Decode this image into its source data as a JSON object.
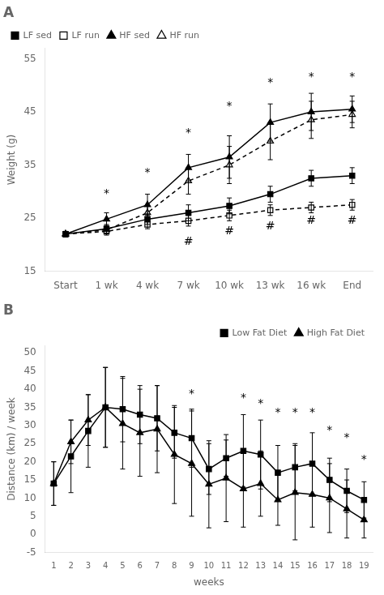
{
  "chart_data": [
    {
      "type": "line",
      "title": "A",
      "categories": [
        "Start",
        "1 wk",
        "4 wk",
        "7 wk",
        "10 wk",
        "13 wk",
        "16 wk",
        "End"
      ],
      "series": [
        {
          "name": "LF sed",
          "color": "#000000",
          "marker": "square",
          "line_style": "solid",
          "values": [
            22.0,
            23.0,
            24.8,
            26.0,
            27.3,
            29.5,
            32.5,
            33.0
          ],
          "errors": [
            0.5,
            0.8,
            1.0,
            1.5,
            1.5,
            1.5,
            1.5,
            1.5
          ]
        },
        {
          "name": "LF run",
          "color": "#000000",
          "marker": "open-square",
          "line_style": "dashed",
          "values": [
            22.0,
            22.5,
            23.8,
            24.5,
            25.5,
            26.5,
            27.0,
            27.5
          ],
          "errors": [
            0.5,
            0.7,
            0.8,
            1.0,
            1.0,
            1.0,
            1.0,
            1.0
          ]
        },
        {
          "name": "HF sed",
          "color": "#000000",
          "marker": "triangle",
          "line_style": "solid",
          "values": [
            22.0,
            24.8,
            27.5,
            34.5,
            36.5,
            43.0,
            45.0,
            45.5
          ],
          "errors": [
            0.5,
            1.2,
            2.0,
            2.5,
            4.0,
            3.5,
            3.5,
            2.5
          ]
        },
        {
          "name": "HF run",
          "color": "#000000",
          "marker": "open-triangle",
          "line_style": "dashed",
          "values": [
            22.0,
            22.8,
            26.0,
            32.0,
            35.0,
            39.5,
            43.5,
            44.5
          ],
          "errors": [
            0.5,
            0.7,
            1.5,
            2.5,
            3.5,
            3.5,
            3.5,
            2.5
          ]
        }
      ],
      "ylabel": "Weight (g)",
      "ylim": [
        15,
        57
      ],
      "yticks": [
        15,
        25,
        35,
        45,
        55
      ],
      "grid": false,
      "legend": "upper left",
      "annotations": [
        {
          "x": "1 wk",
          "y": 29.5,
          "text": "*"
        },
        {
          "x": "4 wk",
          "y": 33.5,
          "text": "*"
        },
        {
          "x": "7 wk",
          "y": 41.0,
          "text": "*"
        },
        {
          "x": "10 wk",
          "y": 46.0,
          "text": "*"
        },
        {
          "x": "13 wk",
          "y": 50.5,
          "text": "*"
        },
        {
          "x": "16 wk",
          "y": 51.5,
          "text": "*"
        },
        {
          "x": "End",
          "y": 51.5,
          "text": "*"
        },
        {
          "x": "7 wk",
          "y": 20.5,
          "text": "#"
        },
        {
          "x": "10 wk",
          "y": 22.5,
          "text": "#"
        },
        {
          "x": "13 wk",
          "y": 23.5,
          "text": "#"
        },
        {
          "x": "16 wk",
          "y": 24.5,
          "text": "#"
        },
        {
          "x": "End",
          "y": 24.5,
          "text": "#"
        }
      ]
    },
    {
      "type": "line",
      "title": "B",
      "x": [
        1,
        2,
        3,
        4,
        5,
        6,
        7,
        8,
        9,
        10,
        11,
        12,
        13,
        14,
        15,
        16,
        17,
        18,
        19
      ],
      "series": [
        {
          "name": "Low Fat Diet",
          "color": "#000000",
          "marker": "square",
          "line_style": "solid",
          "values": [
            14.0,
            21.5,
            28.5,
            35.0,
            34.5,
            33.0,
            32.0,
            28.0,
            26.5,
            18.0,
            21.0,
            23.0,
            22.0,
            17.0,
            18.5,
            19.5,
            15.0,
            12.0,
            9.5
          ],
          "errors": [
            6.0,
            10.0,
            10.0,
            11.0,
            9.0,
            8.0,
            9.0,
            7.0,
            8.0,
            7.0,
            5.0,
            10.0,
            9.5,
            7.5,
            6.5,
            8.5,
            6.0,
            6.0,
            5.0
          ]
        },
        {
          "name": "High Fat Diet",
          "color": "#000000",
          "marker": "triangle",
          "line_style": "solid",
          "values": [
            14.0,
            25.5,
            31.5,
            35.0,
            30.5,
            28.0,
            29.0,
            22.0,
            19.5,
            13.8,
            15.5,
            12.5,
            14.0,
            9.5,
            11.5,
            11.0,
            10.0,
            7.0,
            4.0
          ],
          "errors": [
            6.0,
            6.0,
            7.0,
            11.0,
            12.5,
            12.0,
            12.0,
            13.5,
            14.5,
            12.0,
            12.0,
            10.5,
            9.0,
            7.0,
            13.0,
            9.0,
            9.5,
            8.0,
            5.0
          ]
        }
      ],
      "xlabel": "weeks",
      "ylabel": "Distance (km) / week",
      "xlim": [
        0.5,
        19.5
      ],
      "xticks": [
        1,
        2,
        3,
        4,
        5,
        6,
        7,
        8,
        9,
        10,
        11,
        12,
        13,
        14,
        15,
        16,
        17,
        18,
        19
      ],
      "ylim": [
        -5,
        52
      ],
      "yticks": [
        -5,
        0,
        5,
        10,
        15,
        20,
        25,
        30,
        35,
        40,
        45,
        50
      ],
      "grid": false,
      "legend": "upper right",
      "annotations": [
        {
          "x": 9,
          "y": 38.5,
          "text": "*"
        },
        {
          "x": 12,
          "y": 37.5,
          "text": "*"
        },
        {
          "x": 13,
          "y": 36.0,
          "text": "*"
        },
        {
          "x": 14,
          "y": 33.5,
          "text": "*"
        },
        {
          "x": 15,
          "y": 33.5,
          "text": "*"
        },
        {
          "x": 16,
          "y": 33.5,
          "text": "*"
        },
        {
          "x": 17,
          "y": 28.5,
          "text": "*"
        },
        {
          "x": 18,
          "y": 26.5,
          "text": "*"
        },
        {
          "x": 19,
          "y": 20.5,
          "text": "*"
        }
      ]
    }
  ]
}
